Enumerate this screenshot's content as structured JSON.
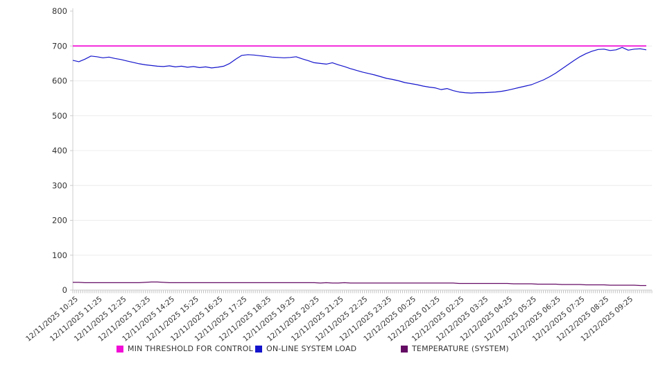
{
  "chart_data": {
    "type": "line",
    "title": "",
    "grid": true,
    "legend_position": "bottom",
    "x_axis": {
      "labels": [
        "12/11/2025 10:25",
        "12/11/2025 11:25",
        "12/11/2025 12:25",
        "12/11/2025 13:25",
        "12/11/2025 14:25",
        "12/11/2025 15:25",
        "12/11/2025 16:25",
        "12/11/2025 17:25",
        "12/11/2025 18:25",
        "12/11/2025 19:25",
        "12/11/2025 20:25",
        "12/11/2025 21:25",
        "12/11/2025 22:25",
        "12/11/2025 23:25",
        "12/12/2025 00:25",
        "12/12/2025 01:25",
        "12/12/2025 02:25",
        "12/12/2025 03:25",
        "12/12/2025 04:25",
        "12/12/2025 05:25",
        "12/12/2025 06:25",
        "12/12/2025 07:25",
        "12/12/2025 08:25",
        "12/12/2025 09:25"
      ],
      "minor_ticks_per_hour": 12,
      "points_per_hour": 4
    },
    "y_axis": {
      "min": 0,
      "max": 800,
      "ticks": [
        0,
        100,
        200,
        300,
        400,
        500,
        600,
        700,
        800
      ]
    },
    "series": [
      {
        "name": "MIN THRESHOLD FOR CONTROL",
        "kind": "threshold",
        "color": "#f20dd6",
        "value": 700
      },
      {
        "name": "ON-LINE SYSTEM LOAD",
        "kind": "line",
        "color": "#1414cc",
        "values": [
          659,
          655,
          662,
          671,
          669,
          666,
          668,
          664,
          661,
          657,
          653,
          649,
          646,
          644,
          642,
          641,
          643,
          640,
          642,
          639,
          641,
          638,
          640,
          637,
          639,
          642,
          650,
          662,
          673,
          675,
          674,
          672,
          670,
          668,
          667,
          666,
          667,
          669,
          663,
          658,
          652,
          650,
          648,
          652,
          646,
          641,
          635,
          630,
          625,
          621,
          617,
          612,
          607,
          604,
          600,
          595,
          592,
          589,
          585,
          582,
          580,
          575,
          578,
          572,
          568,
          566,
          565,
          566,
          566,
          567,
          568,
          570,
          573,
          577,
          581,
          585,
          589,
          596,
          603,
          612,
          622,
          634,
          646,
          658,
          669,
          678,
          685,
          690,
          691,
          687,
          689,
          696,
          688,
          691,
          692,
          689
        ]
      },
      {
        "name": "TEMPERATURE (SYSTEM)",
        "kind": "line",
        "color": "#640b64",
        "values": [
          22,
          22,
          21,
          21,
          21,
          21,
          21,
          21,
          21,
          21,
          21,
          21,
          22,
          23,
          23,
          22,
          21,
          21,
          21,
          21,
          21,
          21,
          21,
          21,
          21,
          21,
          21,
          21,
          21,
          21,
          21,
          21,
          21,
          21,
          21,
          21,
          21,
          21,
          21,
          21,
          21,
          20,
          21,
          20,
          20,
          21,
          20,
          20,
          20,
          20,
          20,
          20,
          20,
          20,
          20,
          20,
          20,
          20,
          20,
          20,
          20,
          20,
          20,
          20,
          19,
          19,
          19,
          19,
          19,
          19,
          19,
          19,
          19,
          18,
          18,
          18,
          18,
          17,
          17,
          17,
          17,
          16,
          16,
          16,
          16,
          15,
          15,
          15,
          15,
          14,
          14,
          14,
          14,
          14,
          13,
          13
        ]
      }
    ],
    "style": {
      "grid_color": "#ececec",
      "axis_color": "#cccccc",
      "tick_color": "#aaaaaa",
      "label_color": "#333333"
    }
  }
}
